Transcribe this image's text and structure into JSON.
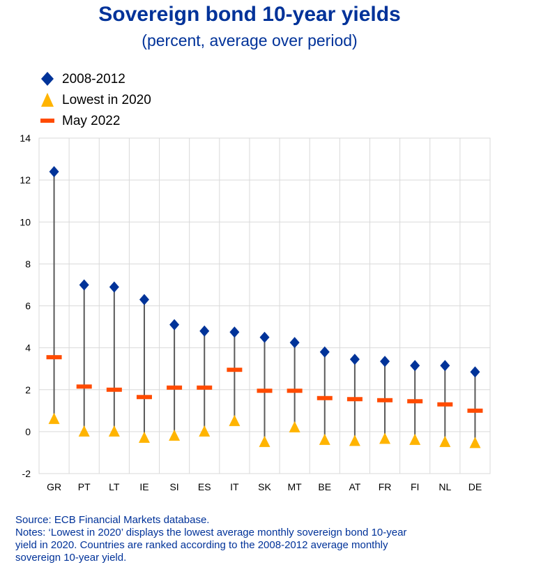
{
  "title": "Sovereign bond 10-year yields",
  "subtitle": "(percent, average over period)",
  "legend": [
    {
      "label": "2008-2012",
      "marker": "diamond",
      "color": "#003399"
    },
    {
      "label": "Lowest in 2020",
      "marker": "triangle",
      "color": "#FFB400"
    },
    {
      "label": "May  2022",
      "marker": "dash",
      "color": "#FF4B00"
    }
  ],
  "chart_data": {
    "type": "scatter",
    "title": "Sovereign bond 10-year yields",
    "subtitle": "(percent, average over period)",
    "xlabel": "",
    "ylabel": "",
    "ylim": [
      -2,
      14
    ],
    "yticks": [
      14,
      12,
      10,
      8,
      6,
      4,
      2,
      0,
      -2
    ],
    "grid": true,
    "categories": [
      "GR",
      "PT",
      "LT",
      "IE",
      "SI",
      "ES",
      "IT",
      "SK",
      "MT",
      "BE",
      "AT",
      "FR",
      "FI",
      "NL",
      "DE"
    ],
    "series": [
      {
        "name": "2008-2012",
        "marker": "diamond",
        "color": "#003399",
        "values": [
          12.4,
          7.0,
          6.9,
          6.3,
          5.1,
          4.8,
          4.75,
          4.5,
          4.25,
          3.8,
          3.45,
          3.35,
          3.15,
          3.15,
          2.85
        ]
      },
      {
        "name": "Lowest in 2020",
        "marker": "triangle",
        "color": "#FFB400",
        "values": [
          0.6,
          0.0,
          0.0,
          -0.3,
          -0.2,
          0.0,
          0.5,
          -0.5,
          0.2,
          -0.4,
          -0.45,
          -0.35,
          -0.4,
          -0.5,
          -0.55
        ]
      },
      {
        "name": "May  2022",
        "marker": "dash",
        "color": "#FF4B00",
        "values": [
          3.55,
          2.15,
          2.0,
          1.65,
          2.1,
          2.1,
          2.95,
          1.95,
          1.95,
          1.6,
          1.55,
          1.5,
          1.45,
          1.3,
          1.0
        ]
      }
    ]
  },
  "footer": {
    "source": "Source: ECB Financial Markets database.",
    "notes_line1": "Notes: ‘Lowest in 2020’ displays the lowest average monthly sovereign bond 10-year",
    "notes_line2": "yield in 2020. Countries are ranked according to the 2008-2012 average monthly",
    "notes_line3": "sovereign 10-year yield."
  }
}
